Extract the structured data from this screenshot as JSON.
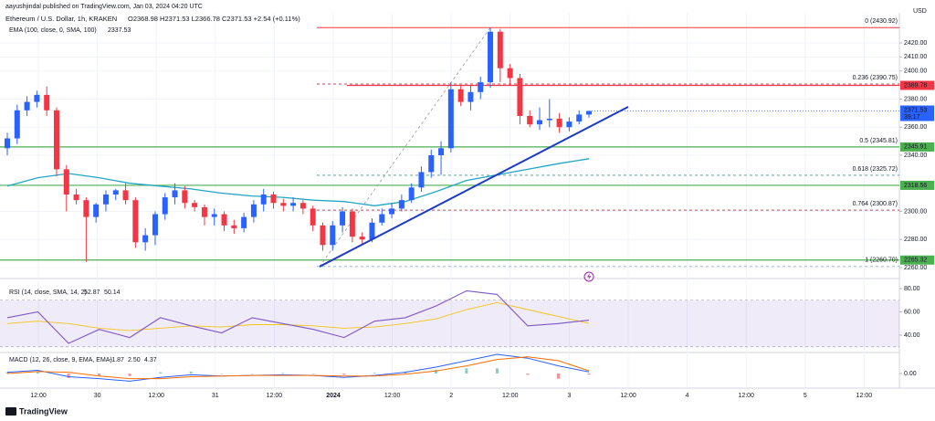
{
  "header": {
    "author_line": "aayushjindal published on TradingView.com, Jan 03, 2024 04:20 UTC",
    "brand": "TradingView"
  },
  "chart_data": [
    {
      "type": "candlestick",
      "title": "Ethereum / U.S. Dollar, 1h, KRAKEN",
      "quote": "O2368.98 H2371.53 L2366.78 C2371.53 +2.54 (+0.11%)",
      "currency": "USD",
      "countdown": "39:17",
      "up_color": "#2962ff",
      "down_color": "#f23645",
      "open": [
        2345,
        2352,
        2372,
        2378,
        2383,
        2372,
        2330,
        2312,
        2308,
        2296,
        2305,
        2312,
        2315,
        2308,
        2278,
        2283,
        2298,
        2310,
        2315,
        2306,
        2303,
        2296,
        2298,
        2290,
        2288,
        2296,
        2305,
        2312,
        2306,
        2304,
        2306,
        2302,
        2290,
        2276,
        2290,
        2300,
        2282,
        2280,
        2292,
        2298,
        2302,
        2308,
        2317,
        2328,
        2340,
        2345,
        2387,
        2378,
        2385,
        2392,
        2428,
        2402,
        2395,
        2368,
        2362,
        2365,
        2366,
        2360,
        2364,
        2368.98
      ],
      "high": [
        2356,
        2376,
        2382,
        2386,
        2389,
        2374,
        2333,
        2316,
        2310,
        2306,
        2315,
        2316,
        2320,
        2310,
        2288,
        2300,
        2313,
        2320,
        2318,
        2308,
        2305,
        2302,
        2300,
        2294,
        2299,
        2308,
        2316,
        2314,
        2309,
        2310,
        2308,
        2304,
        2292,
        2293,
        2303,
        2302,
        2285,
        2295,
        2302,
        2306,
        2312,
        2320,
        2332,
        2344,
        2350,
        2392,
        2390,
        2390,
        2396,
        2431,
        2430,
        2405,
        2398,
        2372,
        2374,
        2380,
        2370,
        2367,
        2372,
        2371.53
      ],
      "low": [
        2340,
        2348,
        2368,
        2374,
        2368,
        2325,
        2300,
        2305,
        2264,
        2292,
        2300,
        2308,
        2305,
        2274,
        2272,
        2276,
        2294,
        2305,
        2302,
        2300,
        2290,
        2290,
        2286,
        2284,
        2285,
        2292,
        2300,
        2302,
        2300,
        2300,
        2298,
        2286,
        2272,
        2272,
        2285,
        2278,
        2276,
        2278,
        2290,
        2295,
        2300,
        2306,
        2314,
        2324,
        2326,
        2342,
        2375,
        2372,
        2380,
        2388,
        2392,
        2390,
        2362,
        2360,
        2358,
        2360,
        2356,
        2357,
        2362,
        2366.78
      ],
      "close": [
        2352,
        2372,
        2378,
        2383,
        2372,
        2330,
        2312,
        2308,
        2296,
        2305,
        2312,
        2315,
        2308,
        2278,
        2283,
        2298,
        2310,
        2315,
        2306,
        2303,
        2296,
        2298,
        2290,
        2288,
        2296,
        2305,
        2312,
        2306,
        2304,
        2306,
        2302,
        2290,
        2276,
        2290,
        2300,
        2282,
        2280,
        2292,
        2298,
        2302,
        2308,
        2317,
        2328,
        2340,
        2345,
        2387,
        2378,
        2385,
        2392,
        2428,
        2402,
        2395,
        2368,
        2362,
        2365,
        2366,
        2360,
        2364,
        2368.98,
        2371.53
      ],
      "ylim": [
        2255.4,
        2445.4
      ],
      "yticks": [
        {
          "value": 2260,
          "label": "2260.00"
        },
        {
          "value": 2280,
          "label": "2280.00"
        },
        {
          "value": 2300,
          "label": "2300.00"
        },
        {
          "value": 2340,
          "label": "2340.00"
        },
        {
          "value": 2360,
          "label": "2360.00"
        },
        {
          "value": 2380,
          "label": "2380.00"
        },
        {
          "value": 2400,
          "label": "2400.00"
        },
        {
          "value": 2410,
          "label": "2410.00"
        },
        {
          "value": 2420,
          "label": "2420.00"
        }
      ],
      "grid": true,
      "time_labels": [
        "12:00",
        "30",
        "12:00",
        "31",
        "12:00",
        "2024",
        "12:00",
        "2",
        "12:00",
        "3",
        "12:00",
        "4",
        "12:00",
        "5",
        "12:00"
      ],
      "ema": {
        "name": "EMA (100, close, 0, SMA, 100)",
        "color": "#22a6c4",
        "values": [
          2318,
          2324,
          2327,
          2324,
          2320,
          2318,
          2316,
          2313,
          2311,
          2310,
          2308,
          2307,
          2304,
          2307,
          2314,
          2322,
          2326,
          2330,
          2334,
          2337.53
        ]
      },
      "hlines": [
        {
          "value": 2389.78,
          "color": "#f23645"
        },
        {
          "value": 2345.91,
          "color": "#4caf50"
        },
        {
          "value": 2318.56,
          "color": "#4caf50"
        },
        {
          "value": 2265.32,
          "color": "#4caf50"
        }
      ],
      "fib": [
        {
          "label": "0 (2430.92)",
          "value": 2430.92,
          "color": "#f23645",
          "dashed": false
        },
        {
          "label": "0.236 (2390.75)",
          "value": 2390.75,
          "color": "#f23645",
          "dashed": true
        },
        {
          "label": "0.5 (2345.81)",
          "value": 2345.81,
          "color": "#4caf50",
          "dashed": false
        },
        {
          "label": "0.618 (2325.72)",
          "value": 2325.72,
          "color": "#26a69a",
          "dashed": true
        },
        {
          "label": "0.764 (2300.87)",
          "value": 2300.87,
          "color": "#f23645",
          "dashed": true
        },
        {
          "label": "1 (2260.70)",
          "value": 2260.7,
          "color": "#8cbcc4",
          "dashed": true
        }
      ],
      "trendline": {
        "color": "#1e3bc8",
        "values": [
          2260.65,
          2374.5
        ]
      }
    },
    {
      "type": "line",
      "title": "RSI (14, close, SMA, 14, 2)",
      "series": [
        {
          "color": "#7e57c2",
          "values": [
            55,
            60,
            33,
            45,
            38,
            55,
            48,
            42,
            55,
            50,
            45,
            38,
            52,
            55,
            65,
            78,
            75,
            48,
            50,
            52.87
          ]
        },
        {
          "color": "#f5c518",
          "values": [
            50,
            52,
            50,
            46,
            44,
            46,
            48,
            47,
            49,
            49,
            48,
            46,
            47,
            50,
            54,
            62,
            68,
            62,
            56,
            50.14
          ]
        }
      ],
      "ylim": [
        26.7,
        84.7
      ],
      "yticks": [
        {
          "value": 40,
          "label": "40.00"
        },
        {
          "value": 60,
          "label": "60.00"
        },
        {
          "value": 80,
          "label": "80.00"
        }
      ],
      "band": [
        30,
        70
      ],
      "band_color": "#7e57c2"
    },
    {
      "type": "macd",
      "title": "MACD (12, 26, close, 9, EMA, EMA)",
      "histogram": {
        "up_color": "#26a69a",
        "down_color": "#f23645",
        "values": [
          2,
          2,
          -7,
          -4,
          -4,
          2,
          3,
          0,
          0,
          1,
          0,
          -2,
          1,
          3,
          6,
          8,
          8,
          -2,
          -8,
          -1.87
        ]
      },
      "series": [
        {
          "color": "#2962ff",
          "legend_label": "2.50",
          "values": [
            2,
            5,
            -5,
            -8,
            -12,
            -6,
            -2,
            -4,
            -3,
            -2,
            -3,
            -6,
            -3,
            2,
            10,
            20,
            30,
            24,
            12,
            2.5
          ]
        },
        {
          "color": "#ff6d00",
          "values": [
            0,
            3,
            2,
            -4,
            -8,
            -8,
            -5,
            -4,
            -3,
            -3,
            -3,
            -4,
            -4,
            -1,
            4,
            12,
            22,
            26,
            20,
            4.37
          ]
        }
      ],
      "ylim": [
        -21.4,
        30
      ],
      "yticks": [
        {
          "value": 0,
          "label": "0.00"
        }
      ]
    }
  ]
}
